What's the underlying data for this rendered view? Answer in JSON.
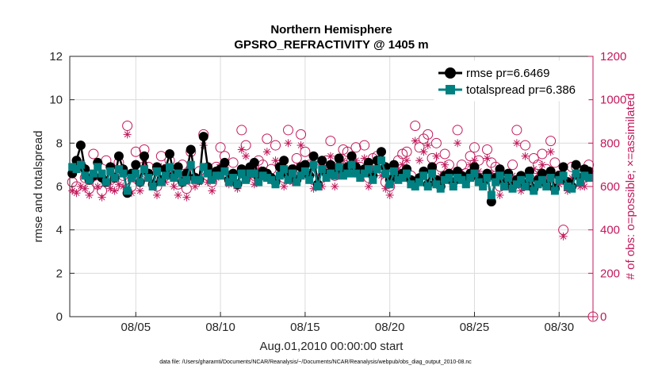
{
  "chart_data": {
    "type": "line",
    "title": "Northern Hemisphere",
    "subtitle": "GPSRO_REFRACTIVITY @ 1405 m",
    "xlabel": "Aug.01,2010 00:00:00 start",
    "ylabel": "rmse and totalspread",
    "y2label": "# of obs: o=possible; ×=assimilated",
    "footnote": "data file: /Users/gharamti/Documents/NCAR/Reanalysis/~/Documents/NCAR/Reanalysis/webpub/obs_diag_output_2010-08.nc",
    "x_unit": "days since Aug.01,2010 00:00:00",
    "xlim": [
      0.6,
      31.5
    ],
    "ylim": [
      0,
      12
    ],
    "y2lim": [
      0,
      1200
    ],
    "x_ticks": [
      4.5,
      9.5,
      14.5,
      19.5,
      24.5,
      29.5
    ],
    "x_tick_labels": [
      "08/05",
      "08/10",
      "08/15",
      "08/20",
      "08/25",
      "08/30"
    ],
    "y_ticks": [
      0,
      2,
      4,
      6,
      8,
      10,
      12
    ],
    "y2_ticks": [
      0,
      200,
      400,
      600,
      800,
      1000,
      1200
    ],
    "grid": true,
    "legend_position": "top-right",
    "x": [
      0.75,
      1.0,
      1.25,
      1.5,
      1.75,
      2.0,
      2.25,
      2.5,
      2.75,
      3.0,
      3.25,
      3.5,
      3.75,
      4.0,
      4.25,
      4.5,
      4.75,
      5.0,
      5.25,
      5.5,
      5.75,
      6.0,
      6.25,
      6.5,
      6.75,
      7.0,
      7.25,
      7.5,
      7.75,
      8.0,
      8.25,
      8.5,
      8.75,
      9.0,
      9.25,
      9.5,
      9.75,
      10.0,
      10.25,
      10.5,
      10.75,
      11.0,
      11.25,
      11.5,
      11.75,
      12.0,
      12.25,
      12.5,
      12.75,
      13.0,
      13.25,
      13.5,
      13.75,
      14.0,
      14.25,
      14.5,
      14.75,
      15.0,
      15.25,
      15.5,
      15.75,
      16.0,
      16.25,
      16.5,
      16.75,
      17.0,
      17.25,
      17.5,
      17.75,
      18.0,
      18.25,
      18.5,
      18.75,
      19.0,
      19.25,
      19.5,
      19.75,
      20.0,
      20.25,
      20.5,
      20.75,
      21.0,
      21.25,
      21.5,
      21.75,
      22.0,
      22.25,
      22.5,
      22.75,
      23.0,
      23.25,
      23.5,
      23.75,
      24.0,
      24.25,
      24.5,
      24.75,
      25.0,
      25.25,
      25.5,
      25.75,
      26.0,
      26.25,
      26.5,
      26.75,
      27.0,
      27.25,
      27.5,
      27.75,
      28.0,
      28.25,
      28.5,
      28.75,
      29.0,
      29.25,
      29.5,
      29.75,
      30.0,
      30.25,
      30.5,
      30.75,
      31.0,
      31.25
    ],
    "series": [
      {
        "name": "rmse pr=6.6469",
        "color": "#000000",
        "marker": "circle",
        "values": [
          6.6,
          7.2,
          7.9,
          6.8,
          6.3,
          6.5,
          7.1,
          6.4,
          6.2,
          6.9,
          6.4,
          7.4,
          6.8,
          5.7,
          6.6,
          7.0,
          6.2,
          7.4,
          6.6,
          6.1,
          6.9,
          6.3,
          6.8,
          7.5,
          6.5,
          6.9,
          6.2,
          6.6,
          7.7,
          6.4,
          6.3,
          8.3,
          6.9,
          6.5,
          6.7,
          6.8,
          7.1,
          6.3,
          6.6,
          6.1,
          6.8,
          6.5,
          6.9,
          7.1,
          6.4,
          6.7,
          6.6,
          6.4,
          6.2,
          6.9,
          7.2,
          6.5,
          6.8,
          6.3,
          6.9,
          7.0,
          6.5,
          7.4,
          6.1,
          7.2,
          6.6,
          7.0,
          6.8,
          7.3,
          6.7,
          6.9,
          7.4,
          6.9,
          6.7,
          6.8,
          7.1,
          6.5,
          7.2,
          7.6,
          6.9,
          6.3,
          7.0,
          6.5,
          6.6,
          6.8,
          6.3,
          6.2,
          6.4,
          6.7,
          6.1,
          6.9,
          6.3,
          6.0,
          6.5,
          6.6,
          6.2,
          6.7,
          6.5,
          6.3,
          6.6,
          6.9,
          6.4,
          6.2,
          6.6,
          5.3,
          6.4,
          6.8,
          6.2,
          6.6,
          6.0,
          6.3,
          6.5,
          6.1,
          6.7,
          5.9,
          6.3,
          6.6,
          6.1,
          6.7,
          5.9,
          6.5,
          6.9,
          6.2,
          6.0,
          7.0,
          6.4,
          6.8,
          6.7
        ]
      },
      {
        "name": "totalspread pr=6.386",
        "color": "#008080",
        "marker": "square",
        "values": [
          6.9,
          6.8,
          7.0,
          6.5,
          6.3,
          6.6,
          6.9,
          6.6,
          6.2,
          6.7,
          6.4,
          6.8,
          6.6,
          5.8,
          6.4,
          6.6,
          6.2,
          6.8,
          6.4,
          6.0,
          6.7,
          6.2,
          6.5,
          6.9,
          6.4,
          6.6,
          6.2,
          6.3,
          7.0,
          6.3,
          6.3,
          6.9,
          6.6,
          6.3,
          6.5,
          6.5,
          6.7,
          6.2,
          6.4,
          6.1,
          6.6,
          6.3,
          6.6,
          6.6,
          6.2,
          6.5,
          6.4,
          6.3,
          6.1,
          6.5,
          6.8,
          6.3,
          6.6,
          6.2,
          6.5,
          6.7,
          6.3,
          7.0,
          6.0,
          6.8,
          6.4,
          6.6,
          6.5,
          6.9,
          6.5,
          6.6,
          7.0,
          6.6,
          6.4,
          6.6,
          6.8,
          6.3,
          6.8,
          7.2,
          6.6,
          6.1,
          6.7,
          6.3,
          6.4,
          6.6,
          6.1,
          6.0,
          6.2,
          6.5,
          6.0,
          6.6,
          6.1,
          5.9,
          6.3,
          6.4,
          6.0,
          6.4,
          6.3,
          6.1,
          6.4,
          6.6,
          6.2,
          6.0,
          6.4,
          5.6,
          6.2,
          6.5,
          6.0,
          6.4,
          5.9,
          6.1,
          6.3,
          6.0,
          6.4,
          5.8,
          6.1,
          6.3,
          6.0,
          6.4,
          5.8,
          6.3,
          6.5,
          6.0,
          5.9,
          6.6,
          6.2,
          6.5,
          6.4
        ]
      },
      {
        "name": "# of obs possible",
        "axis": "right",
        "color": "#c2185b",
        "marker": "open-circle",
        "values": [
          620,
          600,
          700,
          640,
          590,
          750,
          610,
          580,
          720,
          630,
          600,
          710,
          650,
          880,
          600,
          760,
          630,
          770,
          690,
          640,
          600,
          740,
          680,
          720,
          650,
          610,
          700,
          590,
          760,
          640,
          670,
          840,
          650,
          620,
          690,
          780,
          740,
          650,
          710,
          630,
          860,
          790,
          670,
          650,
          720,
          700,
          820,
          680,
          790,
          700,
          640,
          860,
          660,
          730,
          840,
          760,
          700,
          630,
          680,
          640,
          720,
          810,
          650,
          700,
          770,
          760,
          720,
          780,
          690,
          790,
          640,
          730,
          740,
          700,
          620,
          600,
          680,
          720,
          750,
          760,
          650,
          880,
          780,
          820,
          840,
          730,
          800,
          690,
          750,
          700,
          640,
          860,
          700,
          660,
          740,
          780,
          720,
          640,
          770,
          710,
          690,
          600,
          650,
          640,
          700,
          860,
          620,
          790,
          640,
          730,
          700,
          750,
          680,
          810,
          710,
          650,
          400,
          620,
          690,
          690,
          650,
          640,
          700
        ]
      },
      {
        "name": "# of obs assimilated",
        "axis": "right",
        "color": "#c2185b",
        "marker": "star",
        "values": [
          580,
          570,
          600,
          590,
          560,
          640,
          600,
          550,
          620,
          590,
          580,
          610,
          600,
          840,
          570,
          700,
          580,
          710,
          640,
          600,
          560,
          690,
          620,
          650,
          600,
          560,
          650,
          550,
          690,
          600,
          620,
          790,
          620,
          580,
          640,
          700,
          690,
          610,
          660,
          590,
          770,
          740,
          640,
          610,
          680,
          660,
          760,
          640,
          720,
          650,
          600,
          800,
          620,
          690,
          790,
          700,
          650,
          590,
          620,
          600,
          670,
          740,
          600,
          650,
          720,
          700,
          660,
          720,
          640,
          730,
          600,
          680,
          680,
          650,
          590,
          560,
          640,
          680,
          700,
          720,
          610,
          810,
          720,
          760,
          790,
          680,
          740,
          650,
          700,
          650,
          600,
          800,
          650,
          620,
          700,
          720,
          670,
          600,
          730,
          660,
          650,
          560,
          610,
          600,
          650,
          800,
          580,
          740,
          600,
          680,
          660,
          700,
          630,
          760,
          660,
          610,
          370,
          580,
          640,
          650,
          600,
          600,
          650
        ]
      }
    ]
  }
}
